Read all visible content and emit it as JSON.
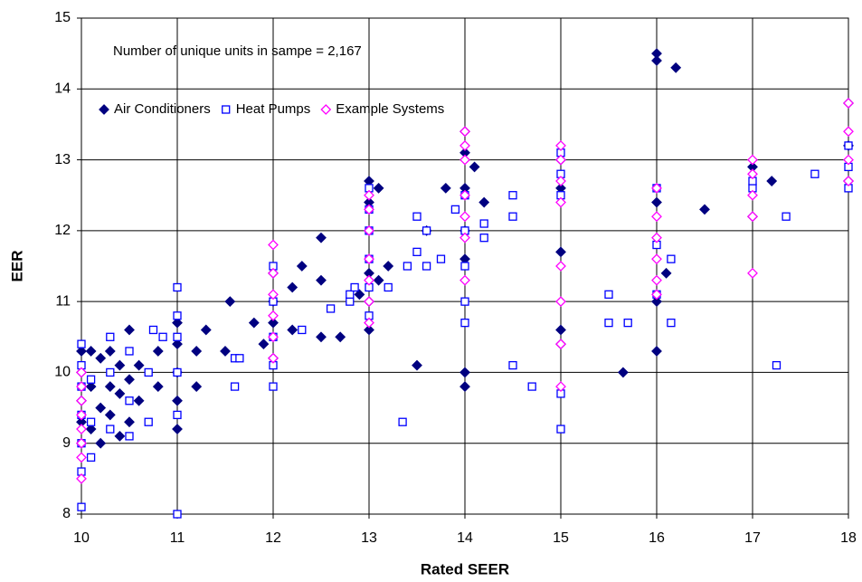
{
  "chart_data": {
    "type": "scatter",
    "annotation": "Number of unique units in sampe = 2,167",
    "xlabel": "Rated SEER",
    "ylabel": "EER",
    "xlim": [
      10,
      18
    ],
    "xticks": [
      10,
      11,
      12,
      13,
      14,
      15,
      16,
      17,
      18
    ],
    "ylim": [
      8,
      15
    ],
    "yticks": [
      8,
      9,
      10,
      11,
      12,
      13,
      14,
      15
    ],
    "grid": true,
    "legend": "upper left",
    "series": [
      {
        "name": "Air Conditioners",
        "color": "#000080",
        "marker": "diamond",
        "filled": true,
        "x": [
          10,
          10,
          10,
          10,
          10,
          10.1,
          10.1,
          10.1,
          10.2,
          10.2,
          10.2,
          10.3,
          10.3,
          10.3,
          10.4,
          10.4,
          10.4,
          10.5,
          10.5,
          10.5,
          10.6,
          10.6,
          10.8,
          10.8,
          11,
          11,
          11,
          11,
          11,
          11.2,
          11.2,
          11.3,
          11.5,
          11.55,
          11.8,
          11.9,
          12,
          12,
          12,
          12,
          12.2,
          12.2,
          12.3,
          12.5,
          12.5,
          12.5,
          12.7,
          12.9,
          13,
          13,
          13,
          13,
          13,
          13,
          13.1,
          13.1,
          13.2,
          13.5,
          13.6,
          13.8,
          14,
          14,
          14,
          14,
          14,
          14,
          14,
          14.1,
          14.2,
          15,
          15,
          15,
          15,
          15,
          15.65,
          16,
          16,
          16,
          16,
          16,
          16.1,
          16.2,
          16.5,
          17,
          17,
          17.2,
          18,
          18,
          18
        ],
        "values": [
          9.0,
          9.3,
          9.6,
          10.0,
          10.3,
          9.2,
          9.8,
          10.3,
          9.0,
          9.5,
          10.2,
          9.4,
          9.8,
          10.3,
          9.1,
          9.7,
          10.1,
          9.3,
          9.9,
          10.6,
          9.6,
          10.1,
          9.8,
          10.3,
          9.2,
          9.6,
          10.0,
          10.4,
          10.7,
          9.8,
          10.3,
          10.6,
          10.3,
          11.0,
          10.7,
          10.4,
          10.2,
          10.7,
          11.0,
          11.4,
          10.6,
          11.2,
          11.5,
          11.9,
          11.3,
          10.5,
          10.5,
          11.1,
          10.6,
          11.0,
          11.4,
          12.0,
          12.4,
          12.7,
          11.3,
          12.6,
          11.5,
          10.1,
          12.0,
          12.6,
          9.8,
          10.0,
          11.6,
          12.0,
          12.6,
          13.1,
          13.4,
          12.9,
          12.4,
          10.4,
          10.6,
          11.7,
          12.6,
          13.0,
          10.0,
          10.3,
          11.0,
          12.4,
          14.4,
          14.5,
          11.4,
          14.3,
          12.3,
          12.2,
          12.9,
          12.7,
          12.7,
          13.2,
          13.8
        ]
      },
      {
        "name": "Heat Pumps",
        "color": "#0000ff",
        "marker": "square",
        "filled": false,
        "x": [
          10,
          10,
          10,
          10,
          10,
          10,
          10,
          10.1,
          10.1,
          10.1,
          10.3,
          10.3,
          10.3,
          10.5,
          10.5,
          10.5,
          10.7,
          10.7,
          10.75,
          10.85,
          11,
          11,
          11,
          11,
          11,
          11,
          11.6,
          11.6,
          11.65,
          12,
          12,
          12,
          12,
          12,
          12.3,
          12.6,
          12.8,
          12.8,
          12.85,
          13,
          13,
          13,
          13,
          13,
          13,
          13.2,
          13.35,
          13.4,
          13.5,
          13.5,
          13.6,
          13.6,
          13.75,
          13.9,
          14,
          14,
          14,
          14,
          14,
          14.2,
          14.2,
          14.5,
          14.5,
          14.5,
          14.7,
          15,
          15,
          15,
          15,
          15,
          15.5,
          15.5,
          15.7,
          16,
          16,
          16,
          16.15,
          16.15,
          17,
          17,
          17.25,
          17.35,
          17.65,
          18,
          18,
          18
        ],
        "values": [
          8.1,
          8.6,
          9.0,
          9.4,
          9.8,
          10.1,
          10.4,
          8.8,
          9.3,
          9.9,
          9.2,
          10.0,
          10.5,
          9.1,
          9.6,
          10.3,
          9.3,
          10.0,
          10.6,
          10.5,
          8.0,
          9.4,
          10.0,
          10.5,
          10.8,
          11.2,
          10.2,
          9.8,
          10.2,
          9.8,
          10.1,
          10.5,
          11.0,
          11.5,
          10.6,
          10.9,
          11.0,
          11.1,
          11.2,
          10.8,
          11.2,
          11.6,
          12.0,
          12.3,
          12.6,
          11.2,
          9.3,
          11.5,
          11.7,
          12.2,
          11.5,
          12.0,
          11.6,
          12.3,
          10.7,
          11.0,
          11.5,
          12.0,
          12.5,
          12.1,
          11.9,
          10.1,
          12.2,
          12.5,
          9.8,
          9.2,
          9.7,
          12.5,
          12.8,
          13.1,
          10.7,
          11.1,
          10.7,
          11.1,
          11.8,
          12.6,
          10.7,
          11.6,
          12.6,
          12.7,
          10.1,
          12.2,
          12.8,
          12.6,
          12.9,
          13.2
        ]
      },
      {
        "name": "Example Systems",
        "color": "#ff00ff",
        "marker": "diamond",
        "filled": false,
        "x": [
          10,
          10,
          10,
          10,
          10,
          10,
          10,
          10,
          12,
          12,
          12,
          12,
          12,
          12,
          13,
          13,
          13,
          13,
          13,
          13,
          13,
          14,
          14,
          14,
          14,
          14,
          14,
          14,
          15,
          15,
          15,
          15,
          15,
          15,
          15,
          15,
          16,
          16,
          16,
          16,
          16,
          16,
          17,
          17,
          17,
          17,
          17,
          18,
          18,
          18,
          18
        ],
        "values": [
          8.5,
          8.8,
          9.0,
          9.2,
          9.4,
          9.6,
          9.8,
          10.0,
          10.2,
          10.5,
          10.8,
          11.1,
          11.4,
          11.8,
          10.7,
          11.0,
          11.3,
          11.6,
          12.0,
          12.3,
          12.5,
          11.3,
          11.9,
          12.2,
          12.5,
          13.0,
          13.2,
          13.4,
          9.8,
          10.4,
          11.0,
          11.5,
          12.4,
          12.7,
          13.0,
          13.2,
          11.1,
          11.3,
          11.6,
          11.9,
          12.2,
          12.6,
          11.4,
          12.2,
          12.5,
          12.8,
          13.0,
          12.7,
          13.0,
          13.4,
          13.8
        ]
      }
    ]
  }
}
